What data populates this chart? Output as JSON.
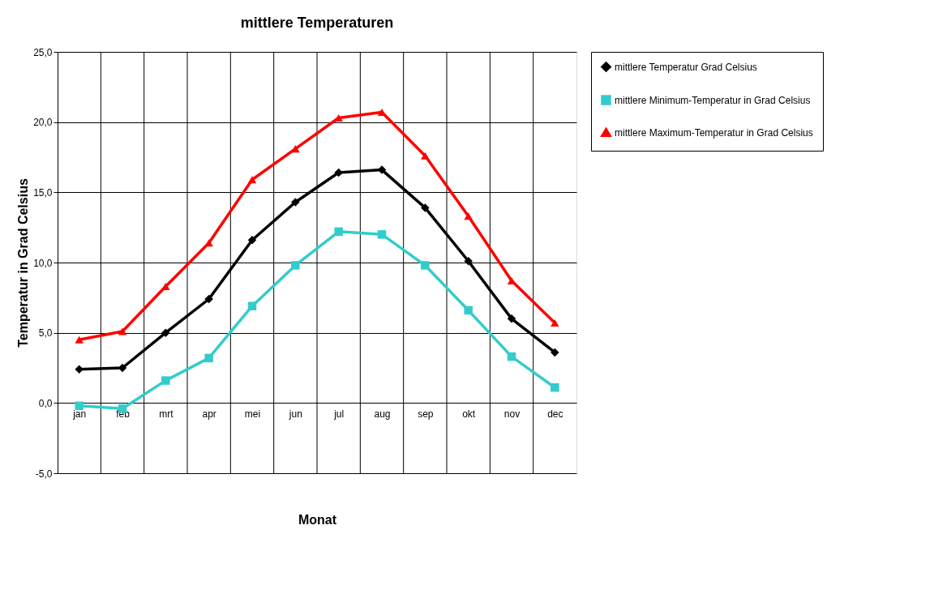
{
  "chart_data": {
    "type": "line",
    "title": "mittlere Temperaturen",
    "xlabel": "Monat",
    "ylabel": "Temperatur in Grad Celsius",
    "categories": [
      "jan",
      "feb",
      "mrt",
      "apr",
      "mei",
      "jun",
      "jul",
      "aug",
      "sep",
      "okt",
      "nov",
      "dec"
    ],
    "series": [
      {
        "name": "mittlere Temperatur Grad Celsius",
        "color": "#000000",
        "marker": "diamond",
        "values": [
          2.4,
          2.5,
          5.0,
          7.4,
          11.6,
          14.3,
          16.4,
          16.6,
          13.9,
          10.1,
          6.0,
          3.6
        ]
      },
      {
        "name": "mittlere Minimum-Temperatur in Grad Celsius",
        "color": "#33cccc",
        "marker": "square",
        "values": [
          -0.2,
          -0.4,
          1.6,
          3.2,
          6.9,
          9.8,
          12.2,
          12.0,
          9.8,
          6.6,
          3.3,
          1.1
        ]
      },
      {
        "name": "mittlere Maximum-Temperatur in Grad Celsius",
        "color": "#ff0000",
        "marker": "triangle",
        "values": [
          4.5,
          5.1,
          8.3,
          11.4,
          15.9,
          18.1,
          20.3,
          20.7,
          17.6,
          13.3,
          8.7,
          5.7
        ]
      }
    ],
    "ylim": [
      -5,
      25
    ],
    "yticks": [
      {
        "value": -5,
        "label": "-5,0"
      },
      {
        "value": 0,
        "label": "0,0"
      },
      {
        "value": 5,
        "label": "5,0"
      },
      {
        "value": 10,
        "label": "10,0"
      },
      {
        "value": 15,
        "label": "15,0"
      },
      {
        "value": 20,
        "label": "20,0"
      },
      {
        "value": 25,
        "label": "25,0"
      }
    ],
    "grid": true,
    "legend": "right",
    "line_style": "solid"
  }
}
